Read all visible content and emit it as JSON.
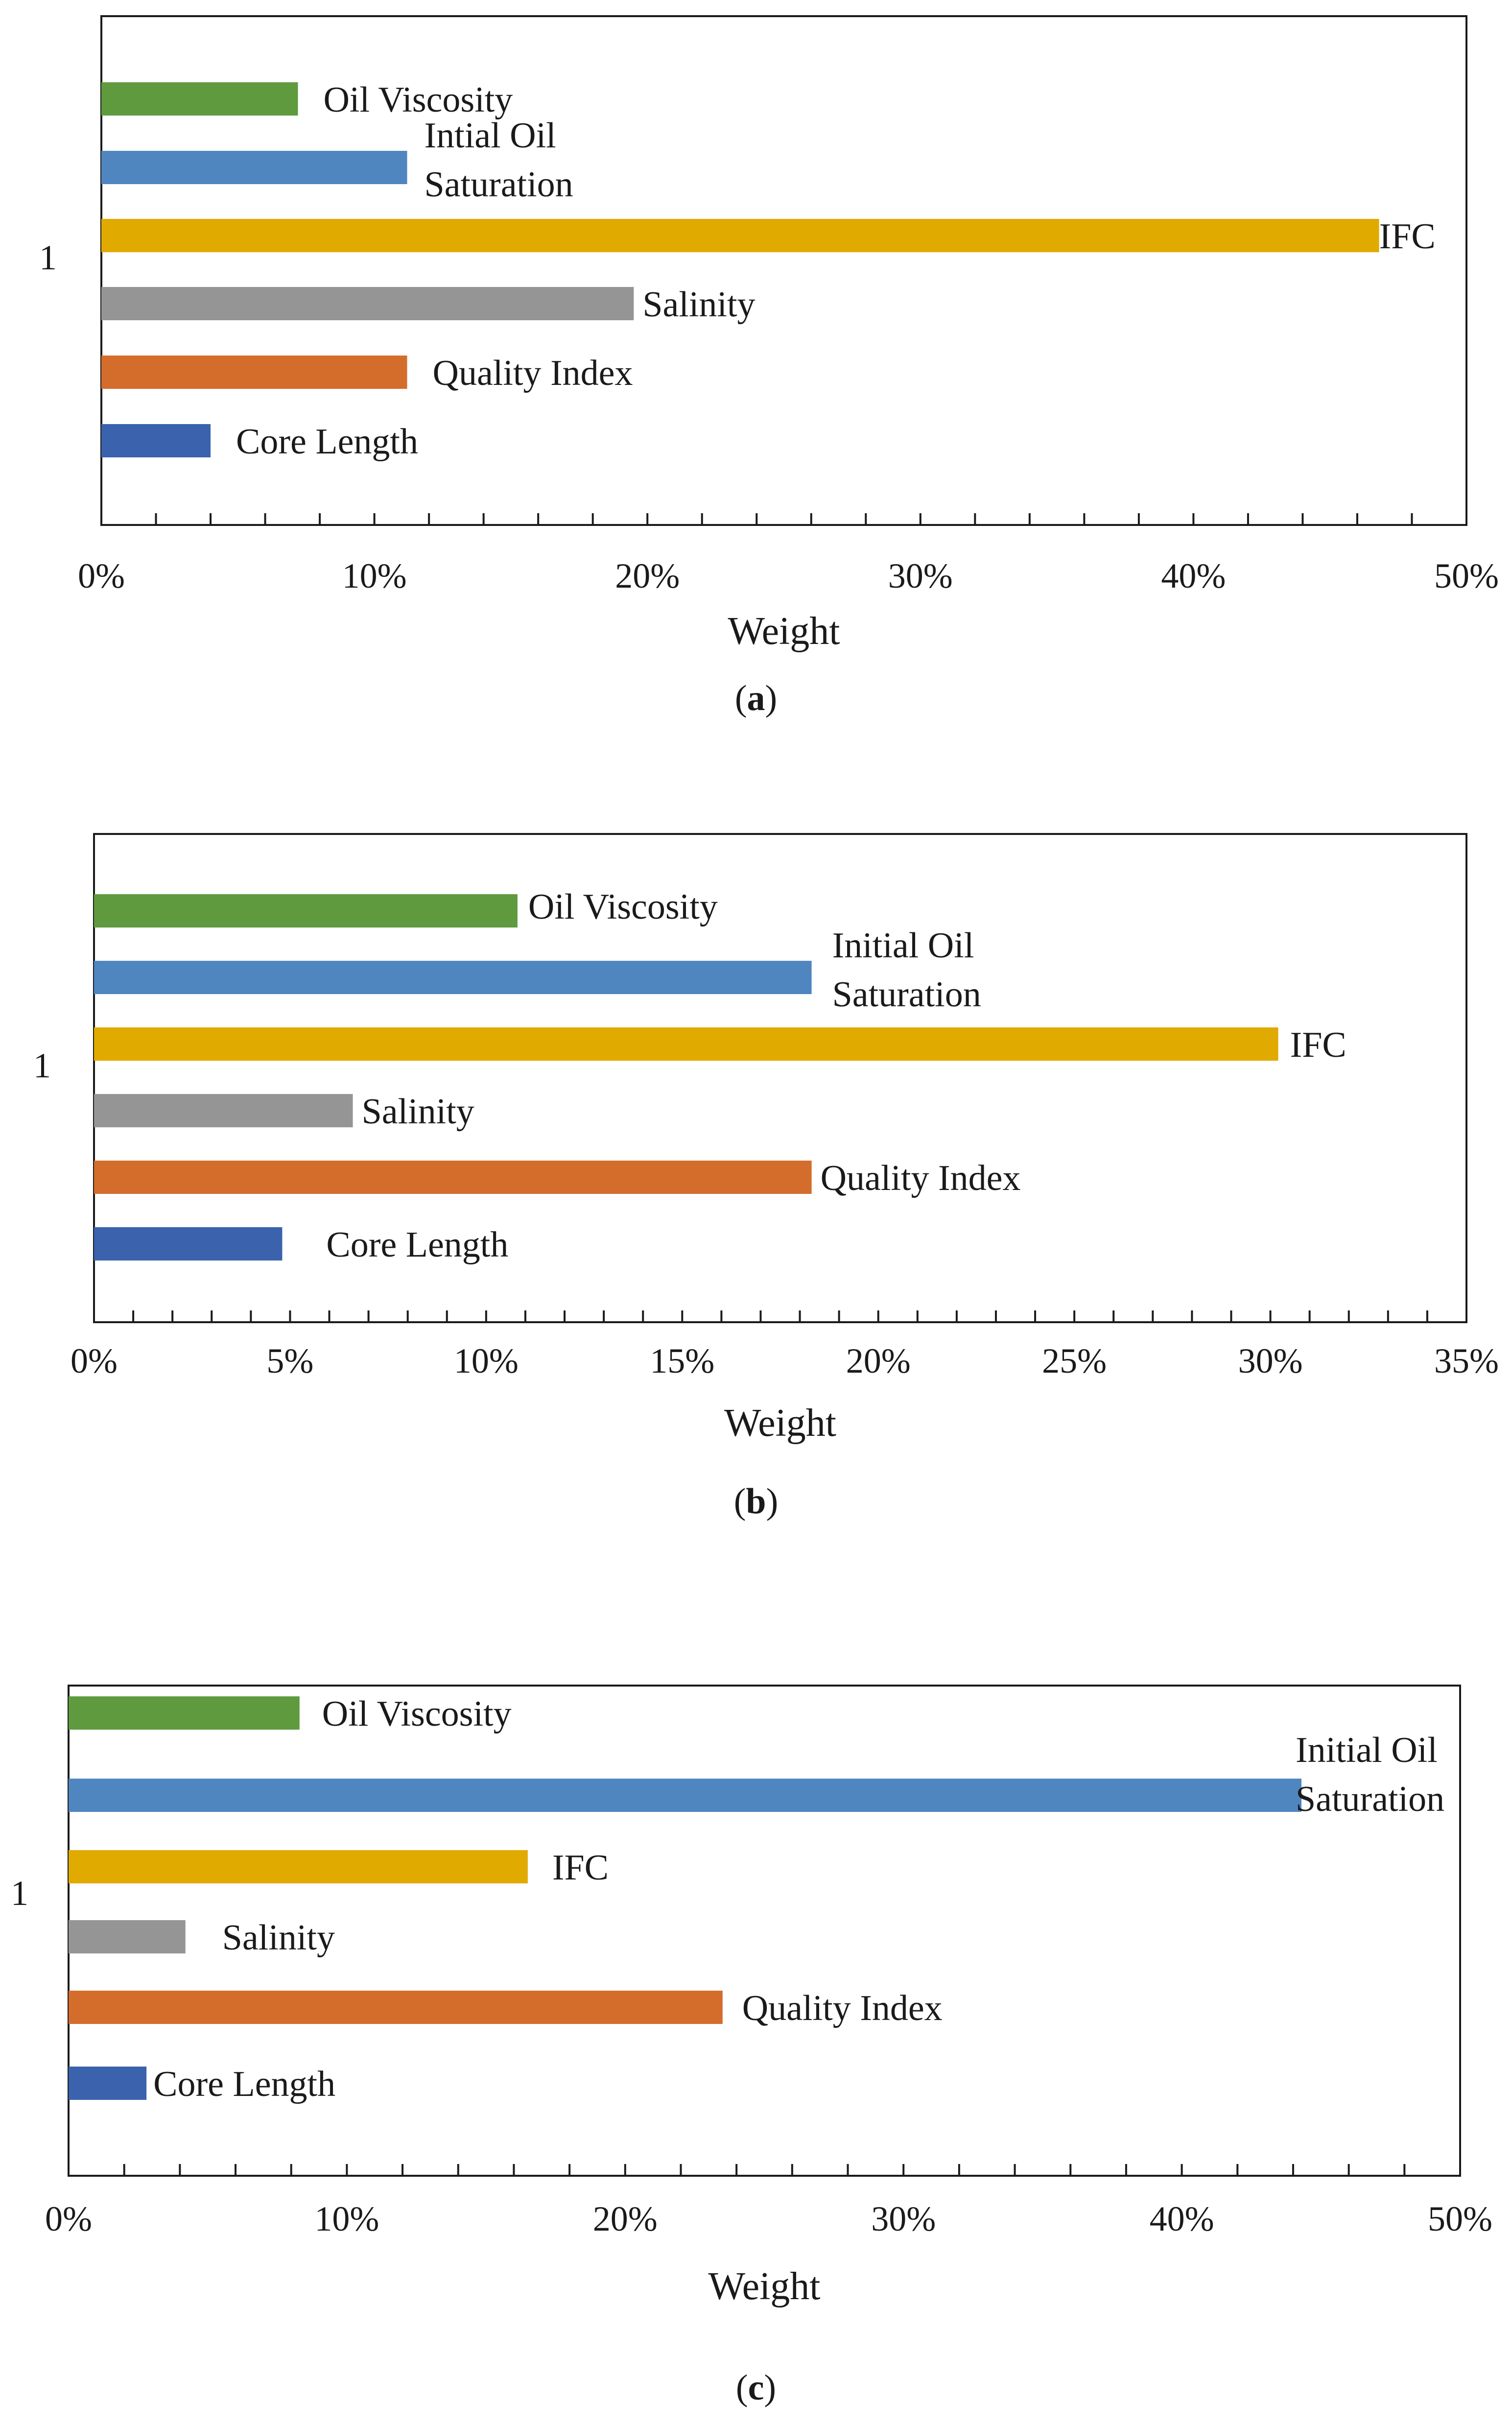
{
  "colors": {
    "oil_viscosity": "#5f9a3e",
    "initial_oil_saturation": "#4f86c0",
    "ifc": "#e1aa00",
    "salinity": "#959595",
    "quality_index": "#d46c2b",
    "core_length": "#3a62ad"
  },
  "chart_data": [
    {
      "type": "bar",
      "orientation": "horizontal",
      "caption_letter": "a",
      "category_label": "1",
      "xlabel": "Weight",
      "xlim": [
        0,
        0.5
      ],
      "x_ticks": [
        "0%",
        "10%",
        "20%",
        "30%",
        "40%",
        "50%"
      ],
      "grid": false,
      "series": [
        {
          "name": "Oil Viscosity",
          "label_lines": [
            "Oil Viscosity"
          ],
          "value": 0.072,
          "color_key": "oil_viscosity"
        },
        {
          "name": "Intial Oil Saturation",
          "label_lines": [
            "Intial Oil",
            "Saturation"
          ],
          "value": 0.112,
          "color_key": "initial_oil_saturation"
        },
        {
          "name": "IFC",
          "label_lines": [
            "IFC"
          ],
          "value": 0.468,
          "color_key": "ifc"
        },
        {
          "name": "Salinity",
          "label_lines": [
            "Salinity"
          ],
          "value": 0.195,
          "color_key": "salinity"
        },
        {
          "name": "Quality Index",
          "label_lines": [
            "Quality Index"
          ],
          "value": 0.112,
          "color_key": "quality_index"
        },
        {
          "name": "Core Length",
          "label_lines": [
            "Core Length"
          ],
          "value": 0.04,
          "color_key": "core_length"
        }
      ]
    },
    {
      "type": "bar",
      "orientation": "horizontal",
      "caption_letter": "b",
      "category_label": "1",
      "xlabel": "Weight",
      "xlim": [
        0,
        0.35
      ],
      "x_ticks": [
        "0%",
        "5%",
        "10%",
        "15%",
        "20%",
        "25%",
        "30%",
        "35%"
      ],
      "grid": false,
      "series": [
        {
          "name": "Oil Viscosity",
          "label_lines": [
            "Oil Viscosity"
          ],
          "value": 0.108,
          "color_key": "oil_viscosity"
        },
        {
          "name": "Initial Oil Saturation",
          "label_lines": [
            "Initial  Oil",
            "Saturation"
          ],
          "value": 0.183,
          "color_key": "initial_oil_saturation"
        },
        {
          "name": "IFC",
          "label_lines": [
            "IFC"
          ],
          "value": 0.302,
          "color_key": "ifc"
        },
        {
          "name": "Salinity",
          "label_lines": [
            "Salinity"
          ],
          "value": 0.066,
          "color_key": "salinity"
        },
        {
          "name": "Quality Index",
          "label_lines": [
            "Quality Index"
          ],
          "value": 0.183,
          "color_key": "quality_index"
        },
        {
          "name": "Core Length",
          "label_lines": [
            "Core Length"
          ],
          "value": 0.048,
          "color_key": "core_length"
        }
      ]
    },
    {
      "type": "bar",
      "orientation": "horizontal",
      "caption_letter": "c",
      "category_label": "1",
      "xlabel": "Weight",
      "xlim": [
        0,
        0.5
      ],
      "x_ticks": [
        "0%",
        "10%",
        "20%",
        "30%",
        "40%",
        "50%"
      ],
      "grid": false,
      "series": [
        {
          "name": "Oil Viscosity",
          "label_lines": [
            "Oil Viscosity"
          ],
          "value": 0.083,
          "color_key": "oil_viscosity"
        },
        {
          "name": "Initial Oil Saturation",
          "label_lines": [
            "Initial  Oil",
            "Saturation"
          ],
          "value": 0.443,
          "color_key": "initial_oil_saturation"
        },
        {
          "name": "IFC",
          "label_lines": [
            "IFC"
          ],
          "value": 0.165,
          "color_key": "ifc"
        },
        {
          "name": "Salinity",
          "label_lines": [
            "Salinity"
          ],
          "value": 0.042,
          "color_key": "salinity"
        },
        {
          "name": "Quality Index",
          "label_lines": [
            "Quality Index"
          ],
          "value": 0.235,
          "color_key": "quality_index"
        },
        {
          "name": "Core Length",
          "label_lines": [
            "Core Length"
          ],
          "value": 0.028,
          "color_key": "core_length"
        }
      ]
    }
  ]
}
